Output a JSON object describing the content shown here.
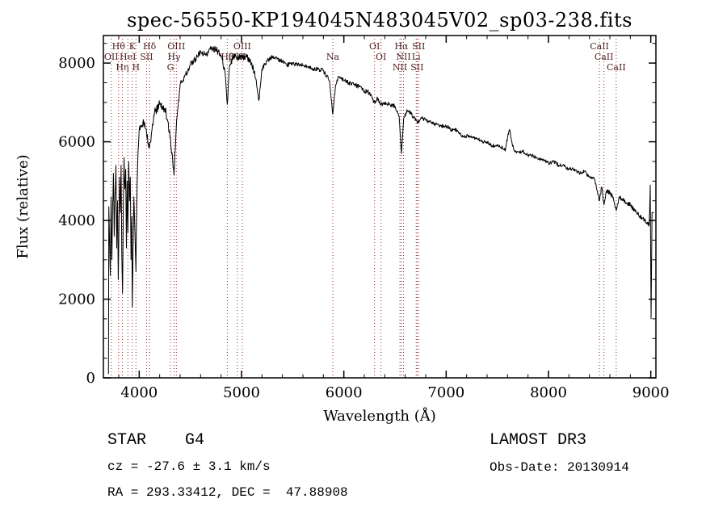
{
  "footer": {
    "class_label": "STAR    G4",
    "cz": "cz = -27.6 ± 3.1 km/s",
    "radec": "RA = 293.33412, DEC =  47.88908",
    "survey": "LAMOST DR3",
    "obs_date": "Obs-Date: 20130914"
  },
  "chart_data": {
    "type": "line",
    "title": "spec-56550-KP194045N483045V02_sp03-238.fits",
    "xlabel": "Wavelength (Å)",
    "ylabel": "Flux (relative)",
    "xlim": [
      3650,
      9050
    ],
    "ylim": [
      0,
      8700
    ],
    "xticks": [
      4000,
      5000,
      6000,
      7000,
      8000,
      9000
    ],
    "yticks": [
      0,
      2000,
      4000,
      6000,
      8000
    ],
    "x_minor_step": 200,
    "y_minor_step": 500,
    "grid": false,
    "legend": "none",
    "line_color": "#000000",
    "marker_line_color": "#8b2a2a",
    "marker_label_color": "#4d1f1f",
    "line_markers": [
      {
        "label": "OII",
        "wl": 3727,
        "row": 1
      },
      {
        "label": "Hθ",
        "wl": 3798,
        "row": 0
      },
      {
        "label": "Hη",
        "wl": 3835,
        "row": 2
      },
      {
        "label": "HeI",
        "wl": 3889,
        "row": 1
      },
      {
        "label": "K",
        "wl": 3933,
        "row": 0
      },
      {
        "label": "H",
        "wl": 3968,
        "row": 2
      },
      {
        "label": "SII",
        "wl": 4072,
        "row": 1
      },
      {
        "label": "Hδ",
        "wl": 4101,
        "row": 0
      },
      {
        "label": "G",
        "wl": 4305,
        "row": 2
      },
      {
        "label": "Hγ",
        "wl": 4340,
        "row": 1
      },
      {
        "label": "OIII",
        "wl": 4363,
        "row": 0
      },
      {
        "label": "Hβ",
        "wl": 4861,
        "row": 1
      },
      {
        "label": "OIII",
        "wl": 4959,
        "row": 1
      },
      {
        "label": "OIII",
        "wl": 5007,
        "row": 0
      },
      {
        "label": "Na",
        "wl": 5892,
        "row": 1
      },
      {
        "label": "OI",
        "wl": 6300,
        "row": 0
      },
      {
        "label": "OI",
        "wl": 6363,
        "row": 1
      },
      {
        "label": "NII",
        "wl": 6548,
        "row": 2
      },
      {
        "label": "Hα",
        "wl": 6563,
        "row": 0
      },
      {
        "label": "NII",
        "wl": 6583,
        "row": 1
      },
      {
        "label": "Li",
        "wl": 6707,
        "row": 1
      },
      {
        "label": "SII",
        "wl": 6716,
        "row": 2
      },
      {
        "label": "SII",
        "wl": 6731,
        "row": 0
      },
      {
        "label": "CaII",
        "wl": 8498,
        "row": 0
      },
      {
        "label": "CaII",
        "wl": 8542,
        "row": 1
      },
      {
        "label": "CaII",
        "wl": 8662,
        "row": 2
      }
    ],
    "noise_segments": [
      [
        3700,
        3995,
        450
      ],
      [
        3995,
        4380,
        230
      ],
      [
        4380,
        5150,
        160
      ],
      [
        5150,
        6500,
        110
      ],
      [
        6500,
        7580,
        95
      ],
      [
        7580,
        8480,
        90
      ],
      [
        8480,
        8990,
        110
      ],
      [
        8990,
        9030,
        0
      ]
    ],
    "spectrum": [
      [
        3700,
        100
      ],
      [
        3703,
        4350
      ],
      [
        3710,
        3500
      ],
      [
        3718,
        2600
      ],
      [
        3725,
        4600
      ],
      [
        3733,
        3000
      ],
      [
        3740,
        4400
      ],
      [
        3748,
        5200
      ],
      [
        3756,
        3600
      ],
      [
        3764,
        4700
      ],
      [
        3772,
        5400
      ],
      [
        3780,
        3300
      ],
      [
        3788,
        4500
      ],
      [
        3795,
        2500
      ],
      [
        3800,
        3400
      ],
      [
        3808,
        5100
      ],
      [
        3816,
        4200
      ],
      [
        3823,
        5400
      ],
      [
        3830,
        3100
      ],
      [
        3837,
        2150
      ],
      [
        3845,
        4400
      ],
      [
        3852,
        5600
      ],
      [
        3860,
        4800
      ],
      [
        3868,
        5300
      ],
      [
        3875,
        3300
      ],
      [
        3882,
        5000
      ],
      [
        3889,
        3700
      ],
      [
        3897,
        5500
      ],
      [
        3905,
        4500
      ],
      [
        3913,
        5100
      ],
      [
        3920,
        3000
      ],
      [
        3927,
        4100
      ],
      [
        3933,
        1800
      ],
      [
        3941,
        3500
      ],
      [
        3948,
        4600
      ],
      [
        3955,
        4000
      ],
      [
        3962,
        3300
      ],
      [
        3968,
        2700
      ],
      [
        3977,
        4400
      ],
      [
        3985,
        5400
      ],
      [
        3993,
        5900
      ],
      [
        4000,
        6300
      ],
      [
        4050,
        6500
      ],
      [
        4072,
        6200
      ],
      [
        4101,
        5850
      ],
      [
        4150,
        6750
      ],
      [
        4200,
        6950
      ],
      [
        4250,
        6850
      ],
      [
        4305,
        6100
      ],
      [
        4340,
        5150
      ],
      [
        4363,
        6400
      ],
      [
        4400,
        7450
      ],
      [
        4450,
        7700
      ],
      [
        4500,
        7950
      ],
      [
        4550,
        8100
      ],
      [
        4600,
        8300
      ],
      [
        4650,
        8200
      ],
      [
        4700,
        8350
      ],
      [
        4750,
        8350
      ],
      [
        4800,
        8200
      ],
      [
        4840,
        7750
      ],
      [
        4861,
        6950
      ],
      [
        4880,
        7850
      ],
      [
        4920,
        8200
      ],
      [
        4959,
        8150
      ],
      [
        5007,
        8150
      ],
      [
        5050,
        8150
      ],
      [
        5100,
        8000
      ],
      [
        5140,
        7600
      ],
      [
        5170,
        7050
      ],
      [
        5200,
        7850
      ],
      [
        5250,
        8050
      ],
      [
        5300,
        8150
      ],
      [
        5350,
        8100
      ],
      [
        5400,
        8050
      ],
      [
        5450,
        7950
      ],
      [
        5500,
        8000
      ],
      [
        5550,
        7950
      ],
      [
        5600,
        7950
      ],
      [
        5650,
        7900
      ],
      [
        5700,
        7850
      ],
      [
        5750,
        7850
      ],
      [
        5800,
        7800
      ],
      [
        5860,
        7550
      ],
      [
        5892,
        6700
      ],
      [
        5920,
        7450
      ],
      [
        5950,
        7650
      ],
      [
        6000,
        7550
      ],
      [
        6050,
        7500
      ],
      [
        6100,
        7450
      ],
      [
        6150,
        7400
      ],
      [
        6200,
        7300
      ],
      [
        6250,
        7250
      ],
      [
        6300,
        7000
      ],
      [
        6330,
        7100
      ],
      [
        6363,
        6950
      ],
      [
        6400,
        7000
      ],
      [
        6450,
        6950
      ],
      [
        6500,
        6900
      ],
      [
        6540,
        6650
      ],
      [
        6563,
        5700
      ],
      [
        6585,
        6600
      ],
      [
        6620,
        6800
      ],
      [
        6660,
        6700
      ],
      [
        6707,
        6550
      ],
      [
        6731,
        6500
      ],
      [
        6760,
        6600
      ],
      [
        6800,
        6550
      ],
      [
        6850,
        6500
      ],
      [
        6900,
        6450
      ],
      [
        6950,
        6400
      ],
      [
        7000,
        6400
      ],
      [
        7050,
        6300
      ],
      [
        7100,
        6300
      ],
      [
        7150,
        6150
      ],
      [
        7200,
        6150
      ],
      [
        7250,
        6100
      ],
      [
        7300,
        6100
      ],
      [
        7350,
        6000
      ],
      [
        7400,
        6000
      ],
      [
        7450,
        5900
      ],
      [
        7500,
        5900
      ],
      [
        7550,
        5850
      ],
      [
        7580,
        5800
      ],
      [
        7605,
        6200
      ],
      [
        7622,
        6300
      ],
      [
        7645,
        5950
      ],
      [
        7670,
        5750
      ],
      [
        7700,
        5750
      ],
      [
        7750,
        5750
      ],
      [
        7800,
        5650
      ],
      [
        7850,
        5650
      ],
      [
        7900,
        5550
      ],
      [
        7950,
        5550
      ],
      [
        8000,
        5450
      ],
      [
        8050,
        5500
      ],
      [
        8100,
        5400
      ],
      [
        8150,
        5400
      ],
      [
        8200,
        5300
      ],
      [
        8250,
        5300
      ],
      [
        8300,
        5200
      ],
      [
        8350,
        5250
      ],
      [
        8400,
        5100
      ],
      [
        8450,
        5050
      ],
      [
        8498,
        4500
      ],
      [
        8520,
        4850
      ],
      [
        8542,
        4400
      ],
      [
        8565,
        4750
      ],
      [
        8600,
        4700
      ],
      [
        8630,
        4600
      ],
      [
        8662,
        4250
      ],
      [
        8690,
        4600
      ],
      [
        8725,
        4550
      ],
      [
        8760,
        4450
      ],
      [
        8800,
        4400
      ],
      [
        8840,
        4250
      ],
      [
        8880,
        4150
      ],
      [
        8920,
        4050
      ],
      [
        8955,
        3950
      ],
      [
        8985,
        3900
      ],
      [
        8995,
        4900
      ],
      [
        9003,
        1500
      ],
      [
        9012,
        4200
      ],
      [
        9030,
        4200
      ]
    ]
  }
}
